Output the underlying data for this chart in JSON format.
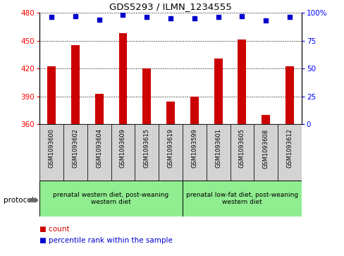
{
  "title": "GDS5293 / ILMN_1234555",
  "samples": [
    "GSM1093600",
    "GSM1093602",
    "GSM1093604",
    "GSM1093609",
    "GSM1093615",
    "GSM1093619",
    "GSM1093599",
    "GSM1093601",
    "GSM1093605",
    "GSM1093608",
    "GSM1093612"
  ],
  "counts": [
    422,
    445,
    393,
    458,
    420,
    384,
    390,
    431,
    451,
    370,
    422
  ],
  "percentile_ranks": [
    96,
    97,
    94,
    98,
    96,
    95,
    95,
    96,
    97,
    93,
    96
  ],
  "ylim_left": [
    360,
    480
  ],
  "yticks_left": [
    360,
    390,
    420,
    450,
    480
  ],
  "ylim_right": [
    0,
    100
  ],
  "yticks_right": [
    0,
    25,
    50,
    75,
    100
  ],
  "bar_color": "#cc0000",
  "dot_color": "#0000cc",
  "group1_label": "prenatal western diet, post-weaning\nwestern diet",
  "group2_label": "prenatal low-fat diet, post-weaning\nwestern diet",
  "group1_count": 6,
  "group2_count": 5,
  "group_color": "#90ee90",
  "sample_box_color": "#d3d3d3",
  "protocol_label": "protocol",
  "legend_count_label": "count",
  "legend_percentile_label": "percentile rank within the sample",
  "bar_width": 0.35,
  "baseline": 360
}
